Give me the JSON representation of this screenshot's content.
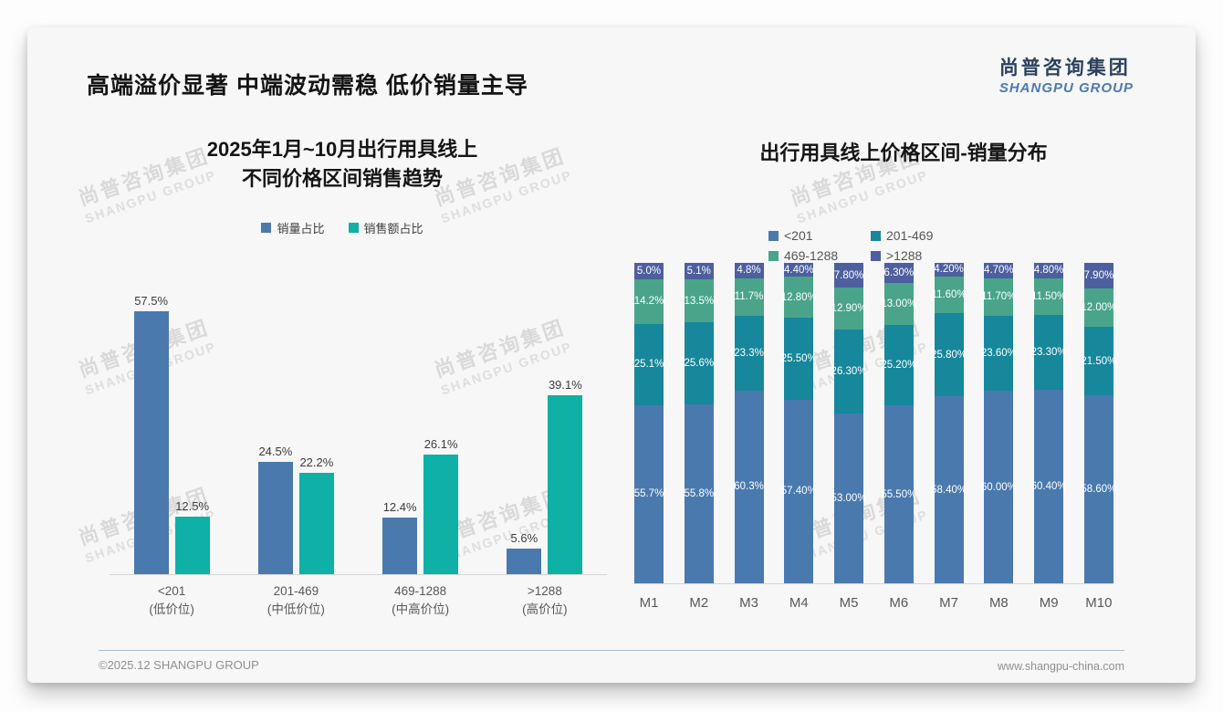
{
  "page": {
    "title": "高端溢价显著 中端波动需稳 低价销量主导"
  },
  "brand": {
    "logo_cn": "尚普咨询集团",
    "logo_en": "SHANGPU GROUP",
    "watermark_cn": "尚普咨询集团",
    "watermark_en": "SHANGPU GROUP",
    "accent_navy": "#2c415f",
    "accent_blue": "#4a7ab5"
  },
  "footer": {
    "copyright": "©2025.12 SHANGPU GROUP",
    "website": "www.shangpu-china.com"
  },
  "chart_data": [
    {
      "type": "bar",
      "title": "2025年1月~10月出行用具线上不同价格区间销售趋势",
      "title_line1": "2025年1月~10月出行用具线上",
      "title_line2": "不同价格区间销售趋势",
      "categories": [
        "<201",
        "201-469",
        "469-1288",
        ">1288"
      ],
      "category_subs": [
        "(低价位)",
        "(中低价位)",
        "(中高价位)",
        "(高价位)"
      ],
      "ylim": [
        0,
        60
      ],
      "grid": false,
      "legend_position": "top",
      "series": [
        {
          "name": "销量占比",
          "color": "#4a79ae",
          "values": [
            57.5,
            24.5,
            12.4,
            5.6
          ],
          "labels": [
            "57.5%",
            "24.5%",
            "12.4%",
            "5.6%"
          ]
        },
        {
          "name": "销售额占比",
          "color": "#0fb0a6",
          "values": [
            12.5,
            22.2,
            26.1,
            39.1
          ],
          "labels": [
            "12.5%",
            "22.2%",
            "26.1%",
            "39.1%"
          ]
        }
      ]
    },
    {
      "type": "bar",
      "subtype": "stacked",
      "title": "出行用具线上价格区间-销量分布",
      "categories": [
        "M1",
        "M2",
        "M3",
        "M4",
        "M5",
        "M6",
        "M7",
        "M8",
        "M9",
        "M10"
      ],
      "ylim": [
        0,
        100
      ],
      "grid": false,
      "legend_position": "top",
      "series": [
        {
          "name": "<201",
          "color": "#4a79ae",
          "values": [
            55.7,
            55.8,
            60.3,
            57.4,
            53.0,
            55.5,
            58.4,
            60.0,
            60.4,
            58.6
          ],
          "labels": [
            "55.7%",
            "55.8%",
            "60.3%",
            "57.40%",
            "53.00%",
            "55.50%",
            "58.40%",
            "60.00%",
            "60.40%",
            "58.60%"
          ]
        },
        {
          "name": "201-469",
          "color": "#17879b",
          "values": [
            25.1,
            25.6,
            23.3,
            25.5,
            26.3,
            25.2,
            25.8,
            23.6,
            23.3,
            21.5
          ],
          "labels": [
            "25.1%",
            "25.6%",
            "23.3%",
            "25.50%",
            "26.30%",
            "25.20%",
            "25.80%",
            "23.60%",
            "23.30%",
            "21.50%"
          ]
        },
        {
          "name": "469-1288",
          "color": "#4aa489",
          "values": [
            14.2,
            13.5,
            11.7,
            12.8,
            12.9,
            13.0,
            11.6,
            11.7,
            11.5,
            12.0
          ],
          "labels": [
            "14.2%",
            "13.5%",
            "11.7%",
            "12.80%",
            "12.90%",
            "13.00%",
            "11.60%",
            "11.70%",
            "11.50%",
            "12.00%"
          ]
        },
        {
          "name": ">1288",
          "color": "#4d5f9f",
          "values": [
            5.0,
            5.1,
            4.8,
            4.4,
            7.8,
            6.3,
            4.2,
            4.7,
            4.8,
            7.9
          ],
          "labels": [
            "5.0%",
            "5.1%",
            "4.8%",
            "4.40%",
            "7.80%",
            "6.30%",
            "4.20%",
            "4.70%",
            "4.80%",
            "7.90%"
          ]
        }
      ]
    }
  ]
}
